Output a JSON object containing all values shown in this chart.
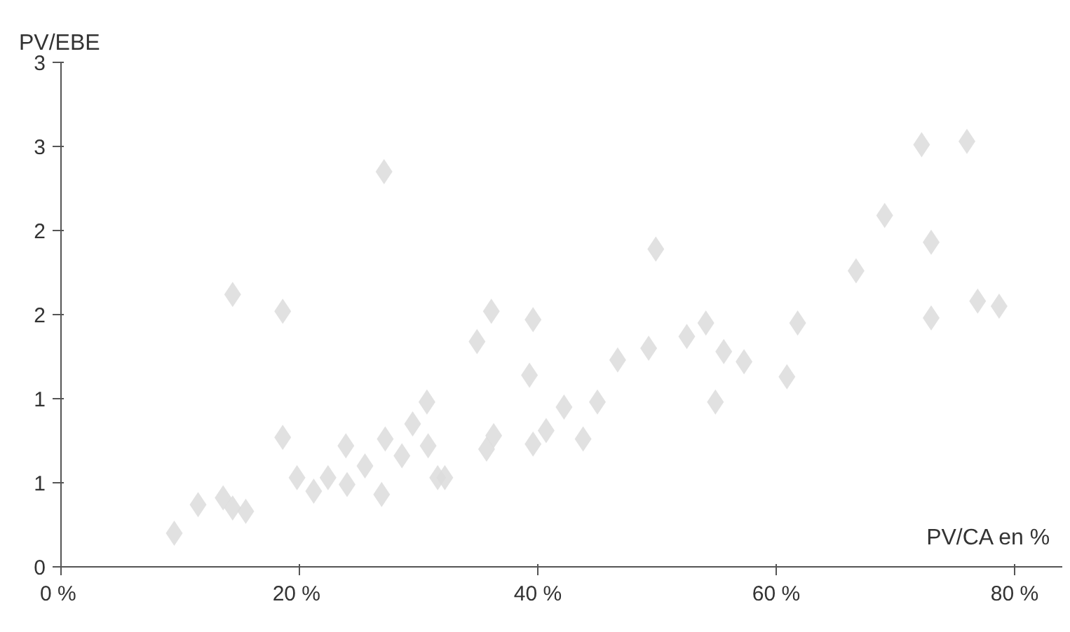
{
  "chart_data": {
    "type": "scatter",
    "xlabel": "PV/CA en %",
    "ylabel": "PV/EBE",
    "marker": "diamond",
    "grid": false,
    "xlim": [
      0,
      84
    ],
    "ylim": [
      0,
      3
    ],
    "xticks": [
      {
        "value": 0,
        "label": "0  %"
      },
      {
        "value": 20,
        "label": "20  %"
      },
      {
        "value": 40,
        "label": "40 %"
      },
      {
        "value": 60,
        "label": "60 %"
      },
      {
        "value": 80,
        "label": "80 %"
      }
    ],
    "yticks": [
      0,
      {
        "value": 0.5,
        "label": "1"
      },
      1,
      {
        "value": 1.5,
        "label": "2"
      },
      2,
      {
        "value": 2.5,
        "label": "3"
      },
      3
    ],
    "series": [
      {
        "color": "#dcdcdc",
        "x": [
          9.5,
          11.5,
          13.6,
          14.4,
          15.5,
          14.4,
          18.6,
          18.6,
          19.8,
          21.2,
          22.4,
          23.9,
          24.0,
          27.1,
          26.9,
          27.2,
          28.6,
          30.7,
          30.8,
          31.6,
          32.2,
          34.9,
          36.1,
          35.7,
          36.3,
          39.6,
          39.3,
          39.6,
          40.7,
          42.2,
          43.8,
          45.0,
          46.7,
          49.3,
          49.9,
          52.5,
          54.1,
          55.6,
          57.3,
          54.9,
          60.9,
          61.8,
          66.7,
          69.1,
          73.0,
          72.2,
          76.0,
          73.0,
          76.9,
          78.7,
          29.5,
          25.5
        ],
        "values": [
          0.2,
          0.37,
          0.41,
          0.35,
          0.33,
          1.62,
          0.77,
          1.52,
          0.53,
          0.45,
          0.53,
          0.72,
          0.49,
          2.35,
          0.43,
          0.76,
          0.66,
          0.98,
          0.72,
          0.53,
          0.53,
          1.34,
          1.52,
          0.7,
          0.78,
          1.47,
          1.14,
          0.73,
          0.81,
          0.95,
          0.76,
          0.98,
          1.23,
          1.3,
          1.89,
          1.37,
          1.45,
          1.28,
          1.22,
          0.98,
          1.13,
          1.45,
          1.76,
          2.09,
          1.93,
          2.51,
          2.53,
          1.48,
          1.58,
          1.55,
          0.85,
          0.6
        ]
      }
    ]
  }
}
